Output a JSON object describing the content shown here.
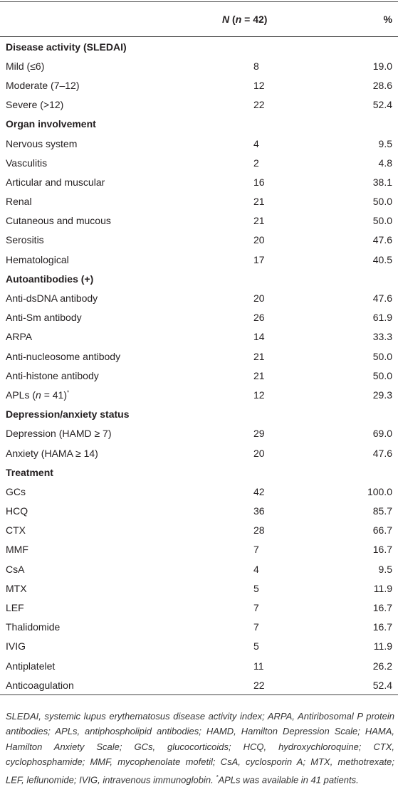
{
  "header": {
    "n_column": [
      "N",
      " (",
      "n",
      " = 42)"
    ],
    "percent_column": "%"
  },
  "sections": [
    {
      "title": "Disease activity (SLEDAI)",
      "rows": [
        [
          "Mild (≤6)",
          8,
          "19.0"
        ],
        [
          "Moderate (7–12)",
          12,
          "28.6"
        ],
        [
          "Severe (>12)",
          22,
          "52.4"
        ]
      ]
    },
    {
      "title": "Organ involvement",
      "rows": [
        [
          "Nervous system",
          4,
          "9.5"
        ],
        [
          "Vasculitis",
          2,
          "4.8"
        ],
        [
          "Articular and muscular",
          16,
          "38.1"
        ],
        [
          "Renal",
          21,
          "50.0"
        ],
        [
          "Cutaneous and mucous",
          21,
          "50.0"
        ],
        [
          "Serositis",
          20,
          "47.6"
        ],
        [
          "Hematological",
          17,
          "40.5"
        ]
      ]
    },
    {
      "title": "Autoantibodies (+)",
      "rows": [
        [
          "Anti-dsDNA antibody",
          20,
          "47.6"
        ],
        [
          "Anti-Sm antibody",
          26,
          "61.9"
        ],
        [
          "ARPA",
          14,
          "33.3"
        ],
        [
          "Anti-nucleosome antibody",
          21,
          "50.0"
        ],
        [
          "Anti-histone antibody",
          21,
          "50.0"
        ],
        [
          [
            {
              "text": "APLs ("
            },
            {
              "text": "n",
              "italic": true
            },
            {
              "text": " = 41)"
            },
            {
              "text": "*",
              "sup": true
            }
          ],
          12,
          "29.3"
        ]
      ]
    },
    {
      "title": "Depression/anxiety status",
      "rows": [
        [
          "Depression (HAMD ≥ 7)",
          29,
          "69.0"
        ],
        [
          "Anxiety (HAMA ≥ 14)",
          20,
          "47.6"
        ]
      ]
    },
    {
      "title": "Treatment",
      "rows": [
        [
          "GCs",
          42,
          "100.0"
        ],
        [
          "HCQ",
          36,
          "85.7"
        ],
        [
          "CTX",
          28,
          "66.7"
        ],
        [
          "MMF",
          7,
          "16.7"
        ],
        [
          "CsA",
          4,
          "9.5"
        ],
        [
          "MTX",
          5,
          "11.9"
        ],
        [
          "LEF",
          7,
          "16.7"
        ],
        [
          "Thalidomide",
          7,
          "16.7"
        ],
        [
          "IVIG",
          5,
          "11.9"
        ],
        [
          "Antiplatelet",
          11,
          "26.2"
        ],
        [
          "Anticoagulation",
          22,
          "52.4"
        ]
      ]
    }
  ],
  "footnote": {
    "text": "SLEDAI, systemic lupus erythematosus disease activity index; ARPA, Antiribosomal P protein antibodies; APLs, antiphospholipid antibodies; HAMD, Hamilton Depression Scale; HAMA, Hamilton Anxiety Scale; GCs, glucocorticoids; HCQ, hydroxychloroquine; CTX, cyclophosphamide; MMF, mycophenolate mofetil; CsA, cyclosporin A; MTX, methotrexate; LEF, leflunomide; IVIG, intravenous immunoglobin.",
    "mark": "*",
    "note": "APLs was available in 41 patients."
  }
}
